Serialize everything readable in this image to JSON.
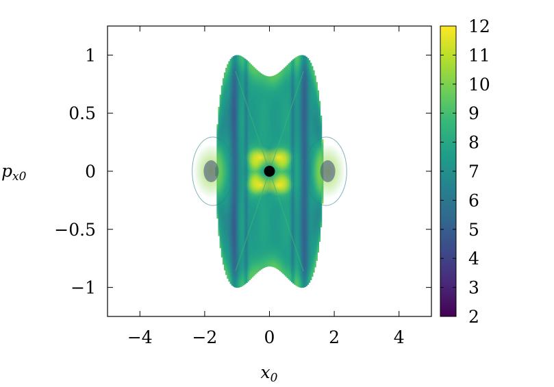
{
  "chart_data": {
    "type": "heatmap",
    "title": "",
    "xlabel": "x_0",
    "ylabel": "p_x0",
    "xlim": [
      -5,
      5
    ],
    "ylim": [
      -1.25,
      1.25
    ],
    "x_ticks": [
      -4,
      -2,
      0,
      2,
      4
    ],
    "x_tick_labels": [
      "−4",
      "−2",
      "0",
      "2",
      "4"
    ],
    "y_ticks": [
      1,
      0.5,
      0,
      -0.5,
      -1
    ],
    "y_tick_labels": [
      "1",
      "0.5",
      "0",
      "−0.5",
      "−1"
    ],
    "colorbar": {
      "range": [
        2,
        12
      ],
      "ticks": [
        2,
        3,
        4,
        5,
        6,
        7,
        8,
        9,
        10,
        11,
        12
      ],
      "tick_labels": [
        "2",
        "3",
        "4",
        "5",
        "6",
        "7",
        "8",
        "9",
        "10",
        "11",
        "12"
      ],
      "colormap": "viridis"
    },
    "colormap_stops": [
      "#440154",
      "#482878",
      "#3e4989",
      "#31688e",
      "#26828e",
      "#1f9e89",
      "#35b779",
      "#6ece58",
      "#b5de2b",
      "#fde725"
    ],
    "marker": {
      "x": 0,
      "y": 0,
      "color": "#000000"
    },
    "grid": false,
    "legend": "none"
  }
}
